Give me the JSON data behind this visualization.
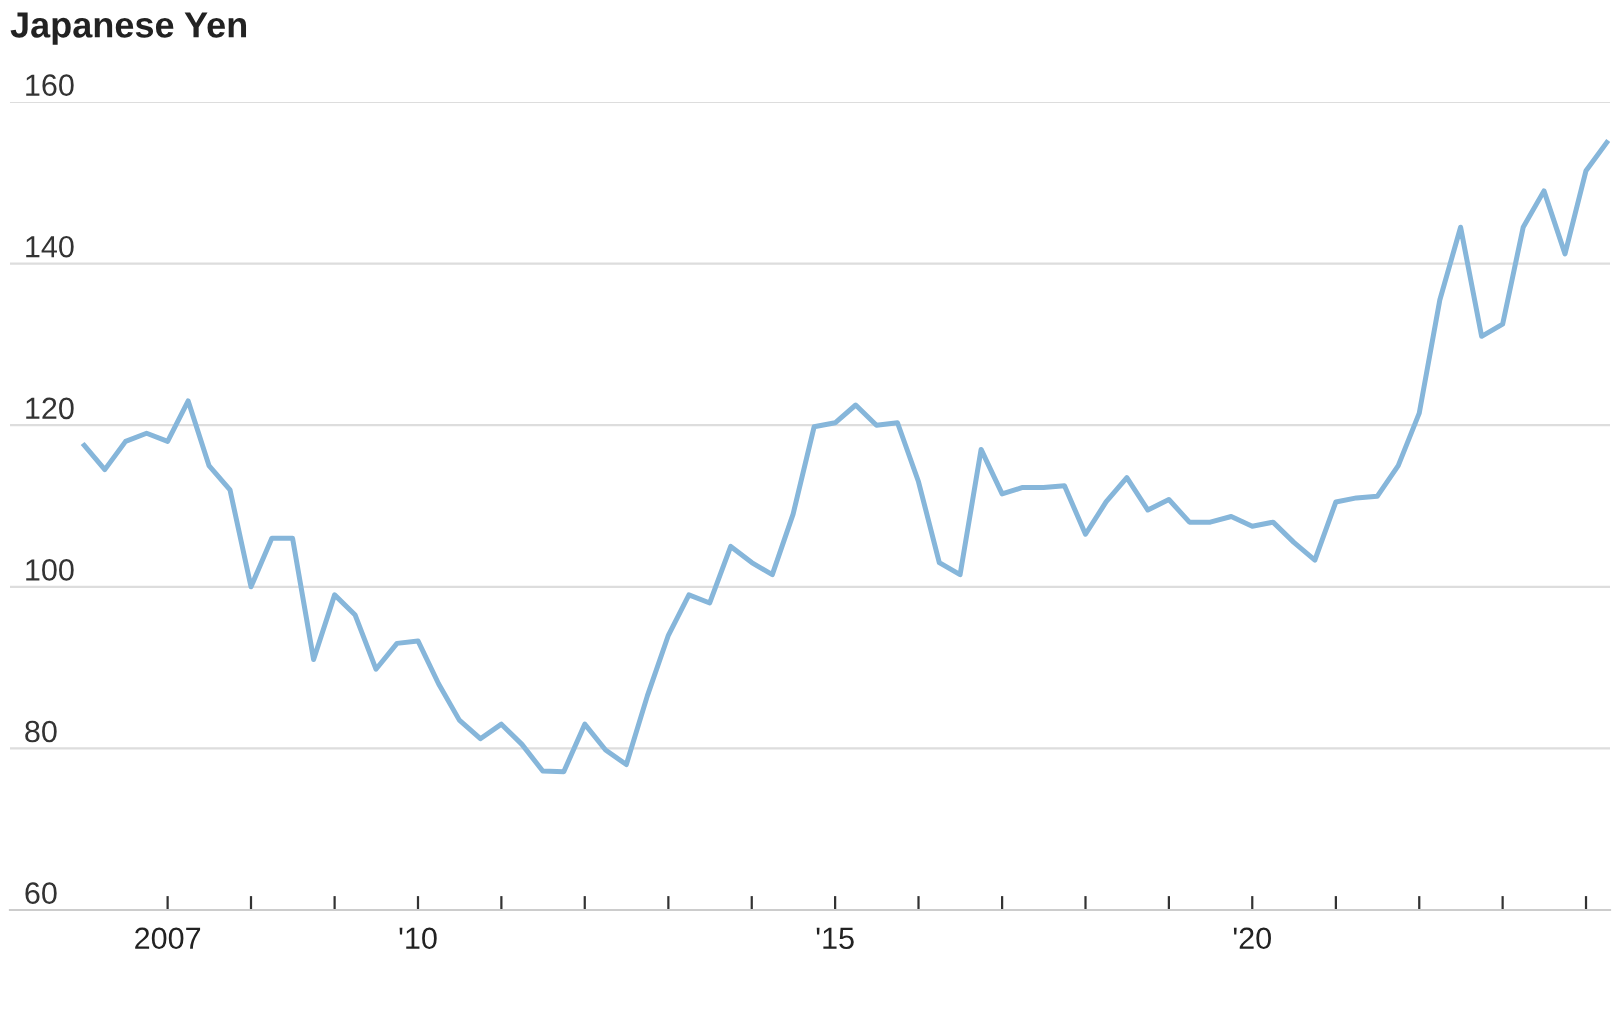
{
  "chart_data": {
    "type": "line",
    "title": "Japanese Yen",
    "x": [
      "2006-01",
      "2006-04",
      "2006-07",
      "2006-10",
      "2007-01",
      "2007-04",
      "2007-07",
      "2007-10",
      "2008-01",
      "2008-04",
      "2008-07",
      "2008-10",
      "2009-01",
      "2009-04",
      "2009-07",
      "2009-10",
      "2010-01",
      "2010-04",
      "2010-07",
      "2010-10",
      "2011-01",
      "2011-04",
      "2011-07",
      "2011-10",
      "2012-01",
      "2012-04",
      "2012-07",
      "2012-10",
      "2013-01",
      "2013-04",
      "2013-07",
      "2013-10",
      "2014-01",
      "2014-04",
      "2014-07",
      "2014-10",
      "2015-01",
      "2015-04",
      "2015-07",
      "2015-10",
      "2016-01",
      "2016-04",
      "2016-07",
      "2016-10",
      "2017-01",
      "2017-04",
      "2017-07",
      "2017-10",
      "2018-01",
      "2018-04",
      "2018-07",
      "2018-10",
      "2019-01",
      "2019-04",
      "2019-07",
      "2019-10",
      "2020-01",
      "2020-04",
      "2020-07",
      "2020-10",
      "2021-01",
      "2021-04",
      "2021-07",
      "2021-10",
      "2022-01",
      "2022-04",
      "2022-07",
      "2022-10",
      "2023-01",
      "2023-04",
      "2023-07",
      "2023-10",
      "2024-01",
      "2024-04"
    ],
    "series": [
      {
        "color": "#86b6da",
        "values": [
          117.5,
          114.5,
          118,
          119,
          118,
          123,
          115,
          112,
          100,
          106,
          106,
          91,
          99,
          96.5,
          89.8,
          93,
          93.3,
          88,
          83.5,
          81.2,
          83,
          80.5,
          77.2,
          77.1,
          83,
          79.8,
          78,
          86.5,
          94,
          99,
          98,
          105,
          103,
          101.5,
          109,
          119.8,
          120.3,
          122.5,
          120,
          120.3,
          113,
          103,
          101.5,
          117,
          111.5,
          112.3,
          112.3,
          112.5,
          106.5,
          110.5,
          113.5,
          109.5,
          110.8,
          108,
          108,
          108.7,
          107.5,
          108,
          105.5,
          103.3,
          110.5,
          111,
          111.2,
          115,
          121.5,
          135.5,
          144.5,
          131,
          132.5,
          144.5,
          149,
          141.2,
          151.5,
          155
        ]
      }
    ],
    "xlim": [
      "2005-02-10",
      "2024-04-15"
    ],
    "xticks": [
      {
        "value": "2007",
        "label": "2007"
      },
      {
        "value": "2008",
        "label": null
      },
      {
        "value": "2009",
        "label": null
      },
      {
        "value": "2010",
        "label": "'10"
      },
      {
        "value": "2011",
        "label": null
      },
      {
        "value": "2012",
        "label": null
      },
      {
        "value": "2013",
        "label": null
      },
      {
        "value": "2014",
        "label": null
      },
      {
        "value": "2015",
        "label": "'15"
      },
      {
        "value": "2016",
        "label": null
      },
      {
        "value": "2017",
        "label": null
      },
      {
        "value": "2018",
        "label": null
      },
      {
        "value": "2019",
        "label": null
      },
      {
        "value": "2020",
        "label": "'20"
      },
      {
        "value": "2021",
        "label": null
      },
      {
        "value": "2022",
        "label": null
      },
      {
        "value": "2023",
        "label": null
      },
      {
        "value": "2024",
        "label": null
      }
    ],
    "ylim": [
      60,
      160
    ],
    "yticks": [
      60,
      80,
      100,
      120,
      140,
      160
    ],
    "grid": "y",
    "line_style": "solid",
    "marker": "none"
  }
}
